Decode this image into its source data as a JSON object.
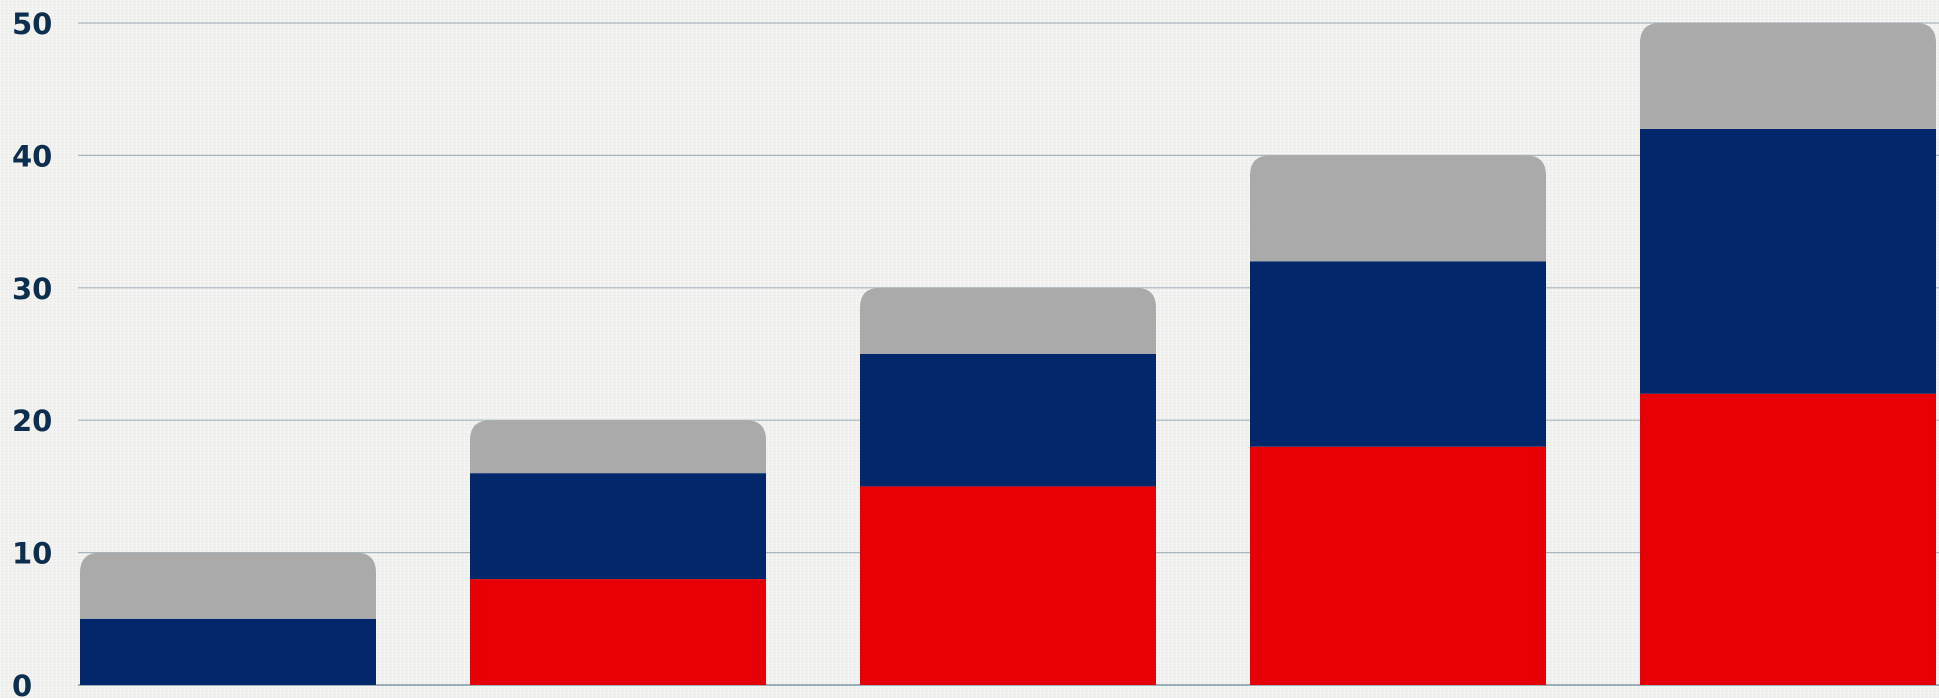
{
  "chart_data": {
    "type": "bar",
    "stacked": true,
    "categories": [
      "",
      "",
      "",
      "",
      ""
    ],
    "series": [
      {
        "color": "#e60005",
        "values": [
          0,
          8,
          15,
          18,
          22
        ]
      },
      {
        "color": "#03276b",
        "values": [
          5,
          8,
          10,
          14,
          20
        ]
      },
      {
        "color": "#aaaaaa",
        "values": [
          5,
          4,
          5,
          8,
          8
        ]
      }
    ],
    "ylim": [
      0,
      50
    ],
    "yticks": [
      "0",
      "10",
      "20",
      "30",
      "40",
      "50"
    ],
    "grid": true,
    "title": "",
    "xlabel": "",
    "ylabel": ""
  }
}
